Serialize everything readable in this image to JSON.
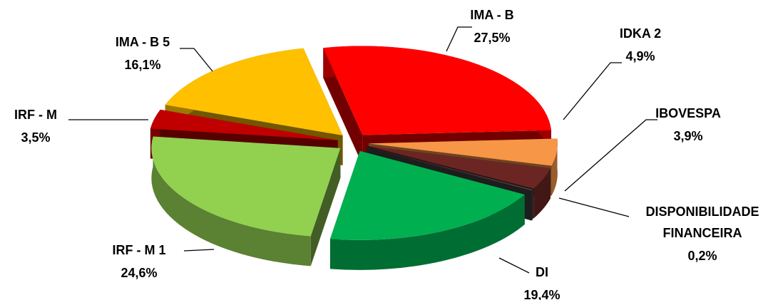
{
  "chart_data": {
    "type": "pie",
    "categories": [
      "IMA - B",
      "IDKA 2",
      "IBOVESPA",
      "DISPONIBILIDADE FINANCEIRA",
      "DI",
      "IRF - M 1",
      "IRF - M",
      "IMA - B 5"
    ],
    "values": [
      27.5,
      4.9,
      3.9,
      0.2,
      19.4,
      24.6,
      3.5,
      16.1
    ],
    "value_labels": [
      "27,5%",
      "4,9%",
      "3,9%",
      "0,2%",
      "19,4%",
      "24,6%",
      "3,5%",
      "16,1%"
    ],
    "colors": [
      "#ff0000",
      "#f79646",
      "#6b2623",
      "#404040",
      "#00b050",
      "#92d050",
      "#c00000",
      "#ffc000"
    ]
  }
}
